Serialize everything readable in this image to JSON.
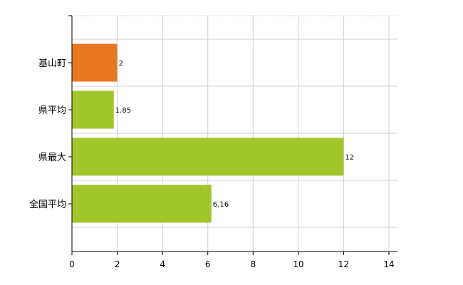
{
  "chart_data": {
    "type": "bar",
    "orientation": "horizontal",
    "categories": [
      "基山町",
      "県平均",
      "県最大",
      "全国平均"
    ],
    "values": [
      2,
      1.85,
      12,
      6.16
    ],
    "value_labels": [
      "2",
      "1.85",
      "12",
      "6.16"
    ],
    "xlim": [
      0,
      14
    ],
    "x_ticks": [
      0,
      2,
      4,
      6,
      8,
      10,
      12,
      14
    ],
    "x_tick_labels": [
      "0",
      "2",
      "4",
      "6",
      "8",
      "10",
      "12",
      "14"
    ],
    "grid": true,
    "colors": {
      "highlight": "#e87722",
      "default": "#a3c62a",
      "grid": "#d0d0d0",
      "axis": "#000000"
    },
    "highlight_category": "基山町"
  }
}
